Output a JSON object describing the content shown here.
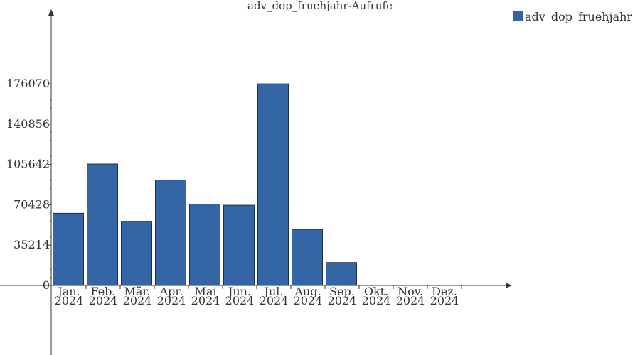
{
  "chart_data": {
    "type": "bar",
    "title": "adv_dop_fruehjahr-Aufrufe",
    "xlabel": "",
    "ylabel": "",
    "categories": [
      [
        "Jan.",
        "2024"
      ],
      [
        "Feb.",
        "2024"
      ],
      [
        "Mär.",
        "2024"
      ],
      [
        "Apr.",
        "2024"
      ],
      [
        "Mai",
        "2024"
      ],
      [
        "Jun.",
        "2024"
      ],
      [
        "Jul.",
        "2024"
      ],
      [
        "Aug.",
        "2024"
      ],
      [
        "Sep.",
        "2024"
      ],
      [
        "Okt.",
        "2024"
      ],
      [
        "Nov.",
        "2024"
      ],
      [
        "Dez.",
        "2024"
      ]
    ],
    "series": [
      {
        "name": "adv_dop_fruehjahr",
        "values": [
          63000,
          106000,
          56000,
          92000,
          71000,
          70000,
          176000,
          49000,
          20000,
          0,
          0,
          0
        ]
      }
    ],
    "yticks": [
      "0",
      "35214",
      "70428",
      "105642",
      "140856",
      "176070"
    ],
    "ytick_values": [
      0,
      35214,
      70428,
      105642,
      140856,
      176070
    ],
    "ylim": [
      0,
      176070
    ],
    "legend_position": "top-right",
    "grid": false,
    "colors": {
      "bar": "#3465a4",
      "bar_stroke": "#1f2f46",
      "axis": "#333333"
    }
  }
}
